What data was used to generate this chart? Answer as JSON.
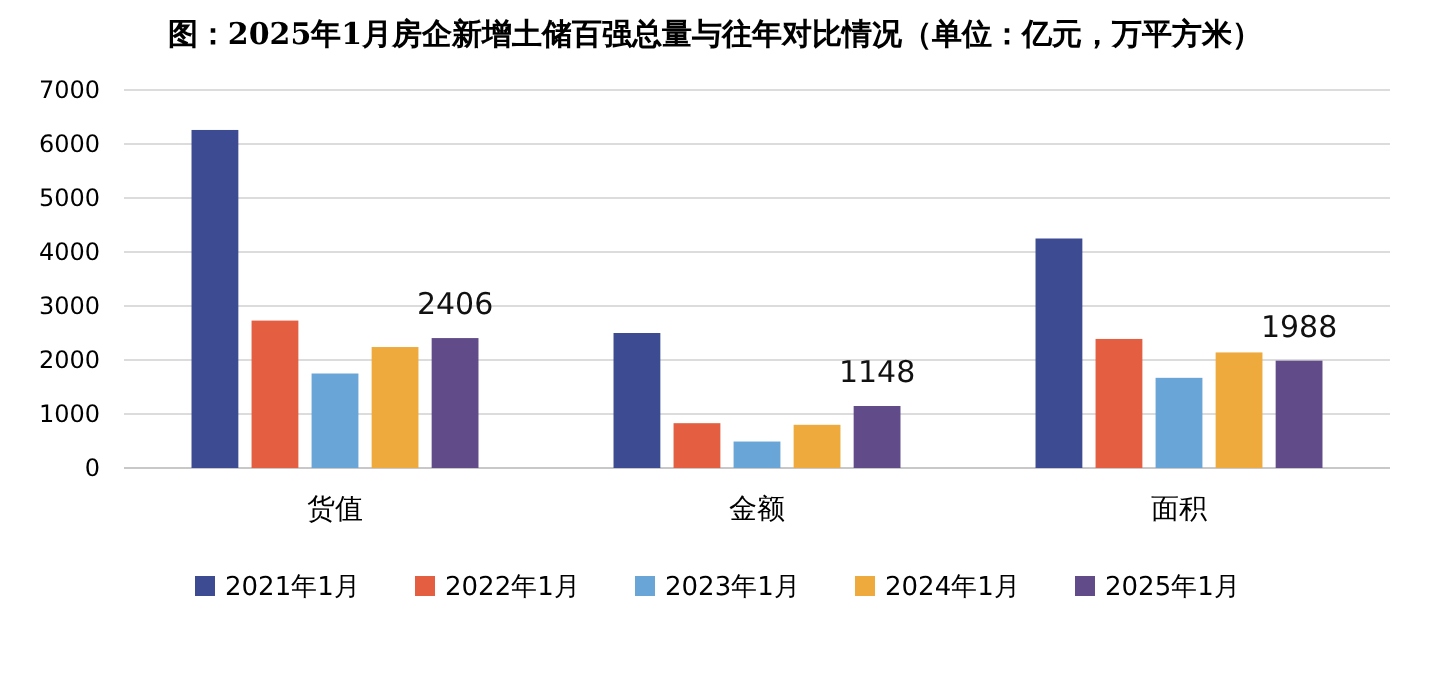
{
  "chart_data": {
    "type": "bar",
    "title": "图：2025年1月房企新增土储百强总量与往年对比情况（单位：亿元，万平方米）",
    "categories": [
      "货值",
      "金额",
      "面积"
    ],
    "series": [
      {
        "name": "2021年1月",
        "color": "#3c4b92",
        "values": [
          6260,
          2500,
          4250
        ]
      },
      {
        "name": "2022年1月",
        "color": "#e45f42",
        "values": [
          2730,
          830,
          2390
        ]
      },
      {
        "name": "2023年1月",
        "color": "#69a5d7",
        "values": [
          1750,
          490,
          1670
        ]
      },
      {
        "name": "2024年1月",
        "color": "#eeaa3c",
        "values": [
          2240,
          800,
          2140
        ]
      },
      {
        "name": "2025年1月",
        "color": "#614c89",
        "values": [
          2406,
          1148,
          1988
        ],
        "value_labels": [
          "2406",
          "1148",
          "1988"
        ]
      }
    ],
    "ylim": [
      0,
      7000
    ],
    "yticks": [
      0,
      1000,
      2000,
      3000,
      4000,
      5000,
      6000,
      7000
    ],
    "grid": "y",
    "legend": "bottom"
  }
}
